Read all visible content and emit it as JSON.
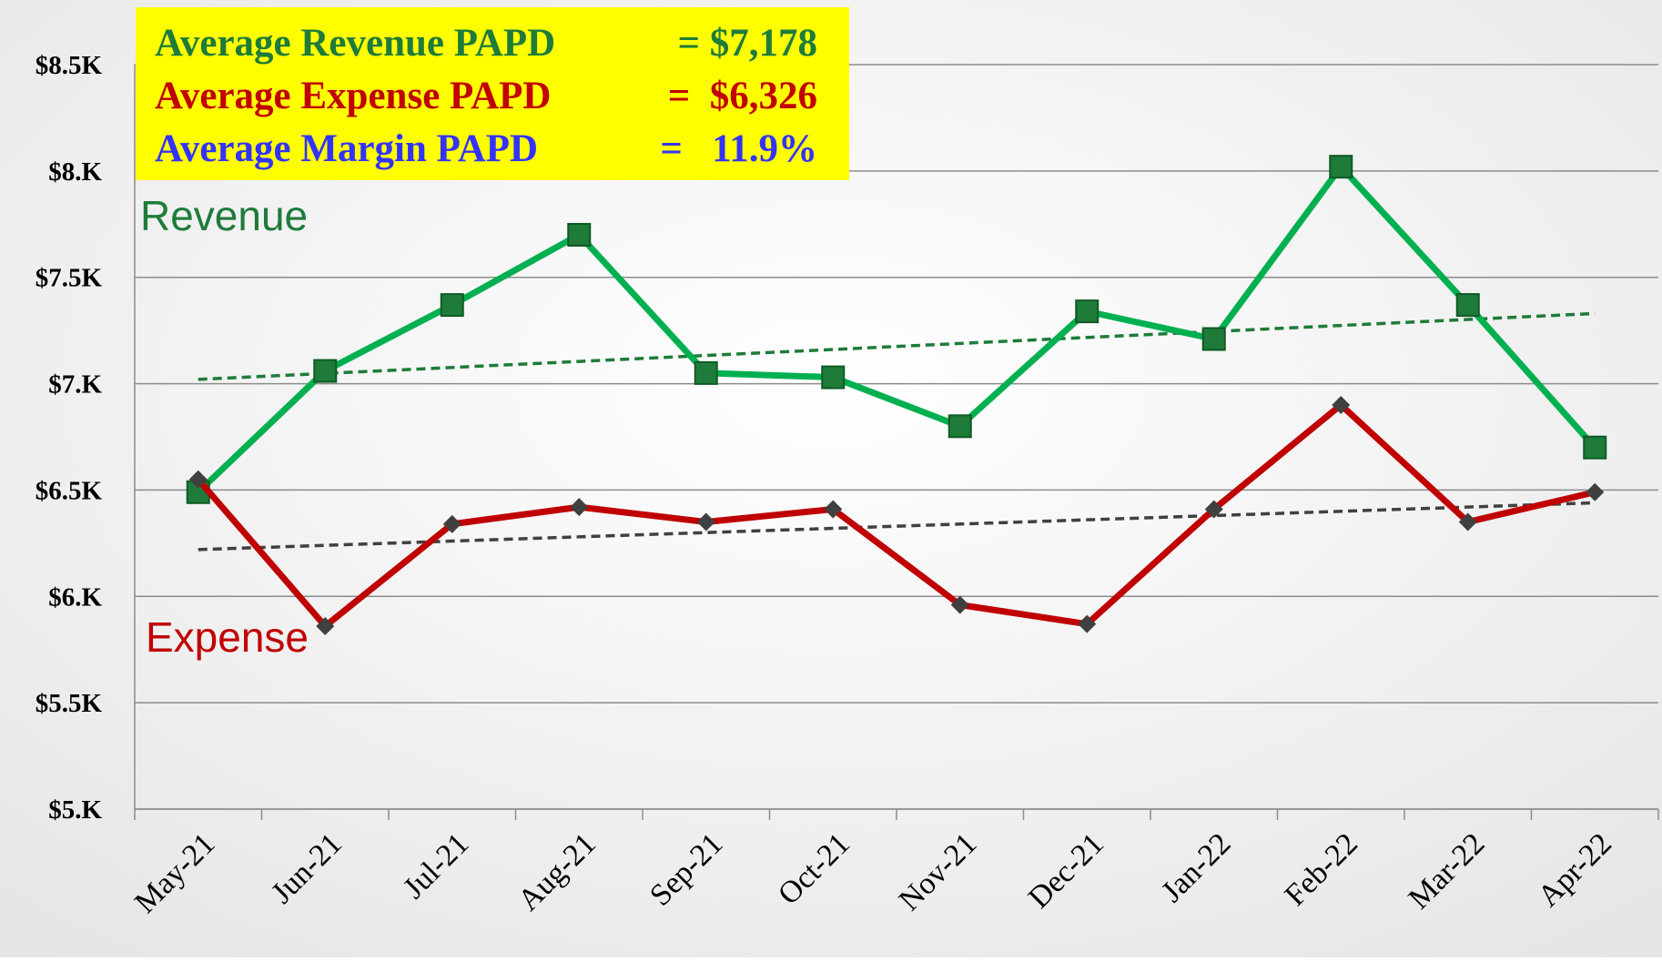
{
  "chart_data": {
    "type": "line",
    "categories": [
      "May-21",
      "Jun-21",
      "Jul-21",
      "Aug-21",
      "Sep-21",
      "Oct-21",
      "Nov-21",
      "Dec-21",
      "Jan-22",
      "Feb-22",
      "Mar-22",
      "Apr-22"
    ],
    "series": [
      {
        "name": "Revenue",
        "color": "#00b050",
        "marker_color": "#1e7b3a",
        "trend_color": "#1e7b3a",
        "values": [
          6490,
          7060,
          7370,
          7700,
          7050,
          7030,
          6800,
          7340,
          7210,
          8020,
          7370,
          6700
        ],
        "trend": [
          7020,
          7330
        ]
      },
      {
        "name": "Expense",
        "color": "#c00000",
        "marker_color": "#404040",
        "trend_color": "#404040",
        "values": [
          6550,
          5860,
          6340,
          6420,
          6350,
          6410,
          5960,
          5870,
          6410,
          6900,
          6350,
          6490
        ],
        "trend": [
          6220,
          6440
        ]
      }
    ],
    "ylim": [
      5000,
      8500
    ],
    "yticks": [
      {
        "value": 5000,
        "label": "$5.K"
      },
      {
        "value": 5500,
        "label": "$5.5K"
      },
      {
        "value": 6000,
        "label": "$6.K"
      },
      {
        "value": 6500,
        "label": "$6.5K"
      },
      {
        "value": 7000,
        "label": "$7.K"
      },
      {
        "value": 7500,
        "label": "$7.5K"
      },
      {
        "value": 8000,
        "label": "$8.K"
      },
      {
        "value": 8500,
        "label": "$8.5K"
      }
    ],
    "grid": true,
    "annotations": [
      {
        "text": "Average Revenue PAPD",
        "value_text": "= $7,178",
        "color": "#1e7b3a"
      },
      {
        "text": "Average Expense PAPD",
        "value_text": "=  $6,326",
        "color": "#c00000"
      },
      {
        "text": "Average Margin PAPD",
        "value_text": "=   11.9%",
        "color": "#3333ff"
      }
    ]
  }
}
